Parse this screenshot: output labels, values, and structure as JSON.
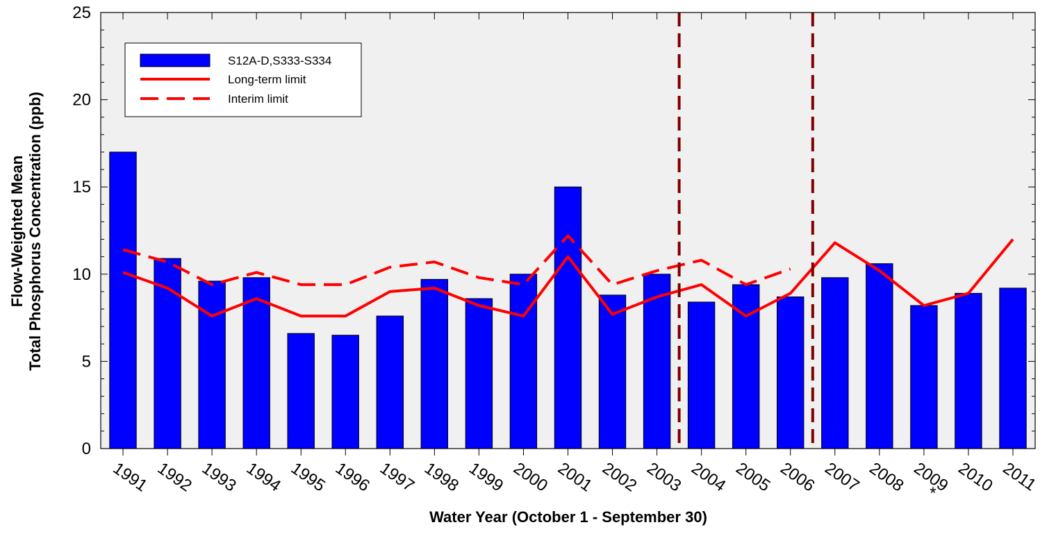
{
  "chart_data": {
    "type": "bar",
    "xlabel": "Water Year (October 1 - September 30)",
    "ylabel_line1": "Flow-Weighted Mean",
    "ylabel_line2": "Total Phosphorus Concentration (ppb)",
    "ylim": [
      0,
      25
    ],
    "yticks": [
      0,
      5,
      10,
      15,
      20,
      25
    ],
    "categories": [
      "1991",
      "1992",
      "1993",
      "1994",
      "1995",
      "1996",
      "1997",
      "1998",
      "1999",
      "2000",
      "2001",
      "2002",
      "2003",
      "2004",
      "2005",
      "2006",
      "2007",
      "2008",
      "2009",
      "2010",
      "2011"
    ],
    "category_marks": {
      "2009": "*"
    },
    "series": [
      {
        "name": "S12A-D,S333-S334",
        "kind": "bar",
        "color": "#0000ff",
        "values": [
          17.0,
          10.9,
          9.6,
          9.8,
          6.6,
          6.5,
          7.6,
          9.7,
          8.6,
          10.0,
          15.0,
          8.8,
          10.0,
          8.4,
          9.4,
          8.7,
          9.8,
          10.6,
          8.2,
          8.9,
          9.2
        ]
      },
      {
        "name": "Long-term limit",
        "kind": "line",
        "style": "solid",
        "color": "#ff0000",
        "values": [
          10.1,
          9.2,
          7.6,
          8.6,
          7.6,
          7.6,
          9.0,
          9.2,
          8.2,
          7.6,
          11.0,
          7.7,
          8.7,
          9.4,
          7.6,
          8.9,
          11.8,
          10.2,
          8.2,
          8.9,
          12.0
        ]
      },
      {
        "name": "Interim limit",
        "kind": "line",
        "style": "dashed",
        "color": "#ff0000",
        "values": [
          11.4,
          10.7,
          9.4,
          10.1,
          9.4,
          9.4,
          10.4,
          10.7,
          9.8,
          9.4,
          12.2,
          9.4,
          10.2,
          10.8,
          9.4,
          10.3,
          null,
          null,
          null,
          null,
          null
        ]
      }
    ],
    "reference_lines": [
      {
        "between": [
          "2003",
          "2004"
        ],
        "style": "dashed",
        "color": "#800000"
      },
      {
        "between": [
          "2006",
          "2007"
        ],
        "style": "dashed",
        "color": "#800000"
      }
    ],
    "plot_background": "#f0f0f0",
    "legend_position": "top-left",
    "grid": false
  }
}
